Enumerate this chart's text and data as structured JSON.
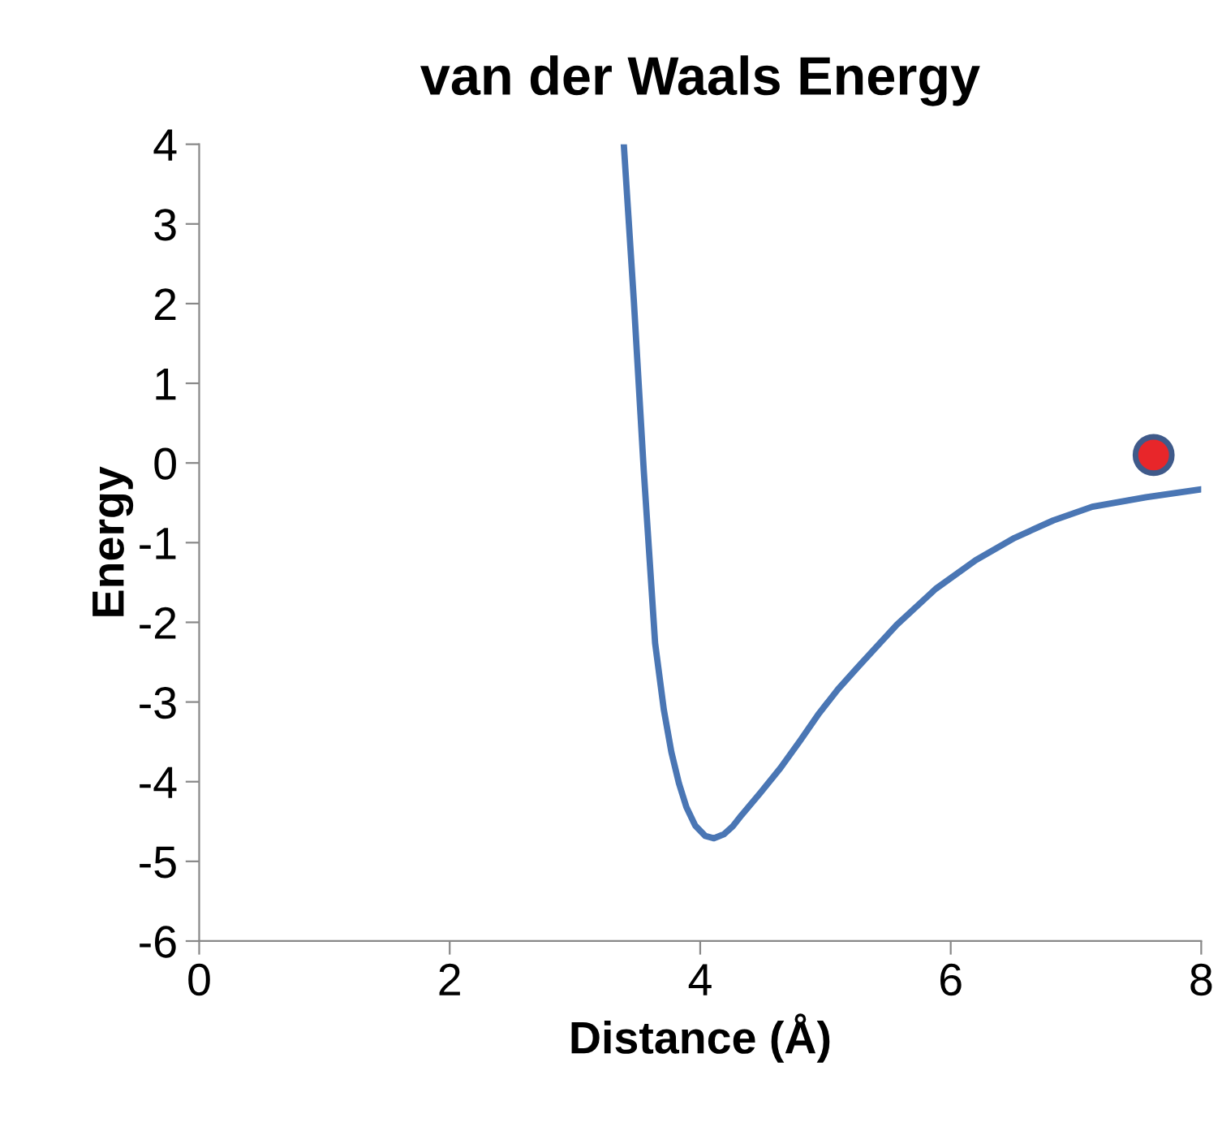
{
  "chart_data": {
    "type": "line",
    "title": "van der Waals Energy",
    "xlabel": "Distance (Å)",
    "ylabel": "Energy",
    "xlim": [
      0,
      8
    ],
    "xticks": [
      0,
      2,
      4,
      6,
      8
    ],
    "ylim": [
      -6,
      4
    ],
    "yticks": [
      -6,
      -5,
      -4,
      -3,
      -2,
      -1,
      0,
      1,
      2,
      3,
      4
    ],
    "grid": false,
    "series": [
      {
        "color": "#4a76b4",
        "marker": "none",
        "x": [
          3.39,
          3.47,
          3.55,
          3.64,
          3.71,
          3.77,
          3.83,
          3.89,
          3.96,
          4.04,
          4.11,
          4.19,
          4.26,
          4.33,
          4.48,
          4.64,
          4.8,
          4.95,
          5.1,
          5.26,
          5.57,
          5.88,
          6.2,
          6.51,
          6.82,
          7.13,
          7.56,
          8.0
        ],
        "values": [
          4,
          2.04,
          -0.11,
          -2.26,
          -3.1,
          -3.63,
          -4.02,
          -4.32,
          -4.55,
          -4.68,
          -4.71,
          -4.66,
          -4.56,
          -4.42,
          -4.14,
          -3.83,
          -3.48,
          -3.14,
          -2.84,
          -2.56,
          -2.03,
          -1.58,
          -1.22,
          -0.94,
          -0.72,
          -0.55,
          -0.43,
          -0.33
        ]
      },
      {
        "type": "scatter",
        "color": "#e8262a",
        "marker": "circle",
        "x": [
          7.62
        ],
        "values": [
          0.1
        ]
      }
    ]
  }
}
